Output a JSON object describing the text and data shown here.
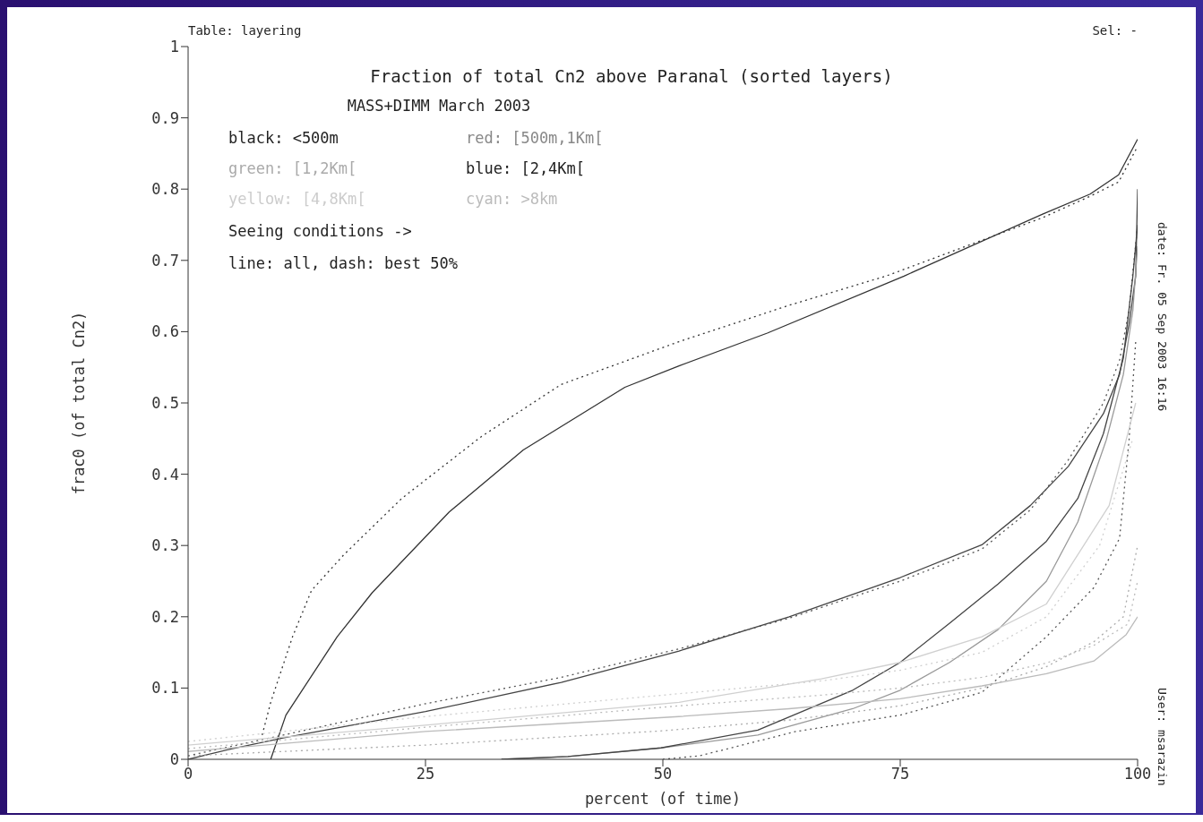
{
  "chart_data": {
    "type": "line",
    "title": "Fraction of total Cn2 above Paranal (sorted layers)",
    "subtitle": "MASS+DIMM March 2003",
    "xlabel": "percent (of time)",
    "ylabel": "frac0 (of total Cn2)",
    "annotations": [
      "Table: layering",
      "Sel: -",
      "black: <500m",
      "red: [500m,1Km[",
      "green: [1,2Km[",
      "blue: [2,4Km[",
      "yellow: [4,8Km[",
      "cyan: >8km",
      "Seeing conditions ->",
      "line: all, dash: best 50%",
      "date: Fr. 05 Sep 2003 16:16",
      "User: msarazin"
    ],
    "xlim": [
      0,
      100
    ],
    "ylim": [
      0,
      1
    ],
    "xticks": [
      0,
      25,
      50,
      75,
      100
    ],
    "yticks": [
      0,
      0.1,
      0.2,
      0.3,
      0.4,
      0.5,
      0.6,
      0.7,
      0.8,
      0.9,
      1
    ],
    "marker": "none",
    "series": [
      {
        "color": "#333333",
        "line_style": "solid",
        "x": [
          8.7,
          10.3,
          15.7,
          19.4,
          27.5,
          35.3,
          46,
          51.7,
          61,
          75.4,
          90,
          95,
          98,
          100
        ],
        "values": [
          0,
          0.062,
          0.172,
          0.234,
          0.347,
          0.434,
          0.522,
          0.552,
          0.598,
          0.678,
          0.765,
          0.793,
          0.82,
          0.87
        ]
      },
      {
        "color": "#333333",
        "line_style": "dotted",
        "x": [
          7.8,
          8.7,
          11,
          13,
          16.4,
          22.5,
          30.9,
          39.3,
          51.7,
          63.3,
          73.5,
          90,
          95,
          98,
          100
        ],
        "values": [
          0.034,
          0.08,
          0.172,
          0.237,
          0.287,
          0.366,
          0.453,
          0.526,
          0.586,
          0.637,
          0.678,
          0.76,
          0.79,
          0.81,
          0.86
        ]
      },
      {
        "color": "#444444",
        "line_style": "solid",
        "x": [
          0,
          5,
          10,
          25,
          39.3,
          51.7,
          63.3,
          75,
          83.6,
          88.7,
          92.7,
          96.4,
          98.1,
          99.1,
          99.8,
          100
        ],
        "values": [
          0,
          0.016,
          0.03,
          0.067,
          0.108,
          0.152,
          0.2,
          0.255,
          0.301,
          0.356,
          0.411,
          0.485,
          0.54,
          0.61,
          0.678,
          0.8
        ]
      },
      {
        "color": "#555555",
        "line_style": "dotted",
        "x": [
          0,
          10,
          25,
          39.3,
          51.7,
          63.3,
          75,
          83.6,
          88.7,
          92.7,
          96.4,
          98.1,
          99.1,
          100
        ],
        "values": [
          0.005,
          0.034,
          0.078,
          0.115,
          0.155,
          0.198,
          0.25,
          0.295,
          0.35,
          0.42,
          0.5,
          0.56,
          0.63,
          0.75
        ]
      },
      {
        "color": "#999999",
        "line_style": "solid",
        "x": [
          33,
          40,
          49.8,
          60,
          70,
          75,
          80.2,
          85.3,
          90.4,
          93.7,
          96.7,
          98.5,
          99.5,
          100
        ],
        "values": [
          0,
          0.004,
          0.016,
          0.034,
          0.071,
          0.097,
          0.136,
          0.182,
          0.25,
          0.333,
          0.448,
          0.54,
          0.63,
          0.72
        ]
      },
      {
        "color": "#aaaaaa",
        "line_style": "dotted",
        "x": [
          0,
          25,
          50,
          63.3,
          75,
          83.6,
          90.4,
          95.4,
          98.5,
          100
        ],
        "values": [
          0.005,
          0.02,
          0.04,
          0.055,
          0.075,
          0.1,
          0.13,
          0.165,
          0.2,
          0.3
        ]
      },
      {
        "color": "#444444",
        "line_style": "solid",
        "x": [
          33,
          40,
          49.8,
          60,
          70,
          75,
          80.2,
          85.3,
          90.4,
          93.7,
          96.4,
          98.5,
          99.5,
          100
        ],
        "values": [
          0,
          0.004,
          0.016,
          0.041,
          0.097,
          0.136,
          0.191,
          0.246,
          0.306,
          0.366,
          0.457,
          0.563,
          0.678,
          0.75
        ]
      },
      {
        "color": "#555555",
        "line_style": "dotted",
        "x": [
          50,
          53.9,
          64,
          75,
          83.6,
          90.4,
          95.4,
          98.1,
          99.1,
          99.8
        ],
        "values": [
          0,
          0.005,
          0.039,
          0.062,
          0.094,
          0.172,
          0.241,
          0.31,
          0.448,
          0.586
        ]
      },
      {
        "color": "#bbbbbb",
        "line_style": "solid",
        "x": [
          0,
          25,
          51.7,
          63.3,
          75,
          83.6,
          90.4,
          95.4,
          98.8,
          100
        ],
        "values": [
          0.011,
          0.039,
          0.06,
          0.071,
          0.085,
          0.103,
          0.12,
          0.138,
          0.175,
          0.2
        ]
      },
      {
        "color": "#bbbbbb",
        "line_style": "dotted",
        "x": [
          0,
          25,
          51.7,
          66.7,
          75,
          83.6,
          90.4,
          95.4,
          99,
          100
        ],
        "values": [
          0.015,
          0.045,
          0.075,
          0.09,
          0.1,
          0.115,
          0.135,
          0.16,
          0.19,
          0.25
        ]
      },
      {
        "color": "#d0d0d0",
        "line_style": "solid",
        "x": [
          0,
          25,
          51.7,
          66.7,
          75,
          83.6,
          90.4,
          97,
          99.8
        ],
        "values": [
          0.02,
          0.048,
          0.08,
          0.113,
          0.136,
          0.172,
          0.218,
          0.356,
          0.5
        ]
      },
      {
        "color": "#d0d0d0",
        "line_style": "dotted",
        "x": [
          0,
          25,
          50,
          66.7,
          75,
          83.6,
          90.4,
          96,
          99.5
        ],
        "values": [
          0.025,
          0.06,
          0.09,
          0.11,
          0.125,
          0.15,
          0.2,
          0.3,
          0.45
        ]
      }
    ]
  }
}
